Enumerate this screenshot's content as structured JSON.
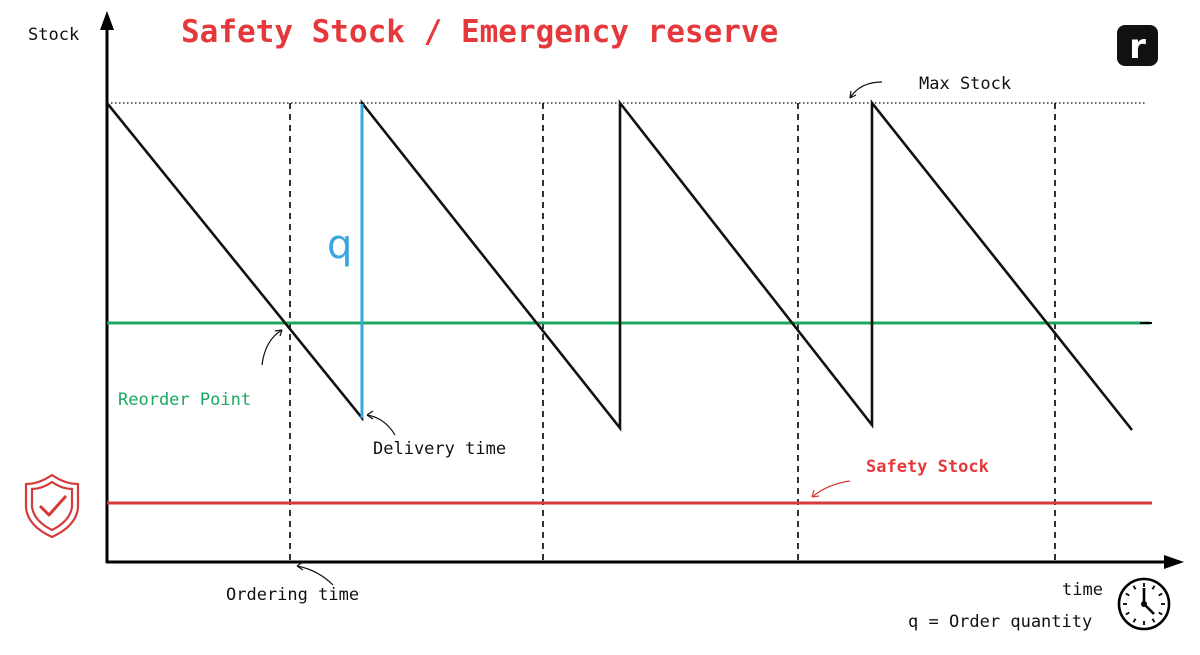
{
  "title": "Safety Stock / Emergency reserve",
  "y_axis_label": "Stock",
  "x_axis_label": "time",
  "labels": {
    "max_stock": "Max Stock",
    "reorder_point": "Reorder Point",
    "delivery_time": "Delivery time",
    "safety_stock": "Safety Stock",
    "ordering_time": "Ordering time",
    "q": "q",
    "legend_q": "q = Order quantity"
  },
  "logo_letter": "r",
  "colors": {
    "title": "#e5383b",
    "reorder_line": "#1aa860",
    "safety_line": "#d63a3a",
    "order_quantity": "#3aa6e0",
    "stock_line": "#111111"
  },
  "icons": [
    "shield-check-icon",
    "clock-icon",
    "logo-r-icon"
  ]
}
